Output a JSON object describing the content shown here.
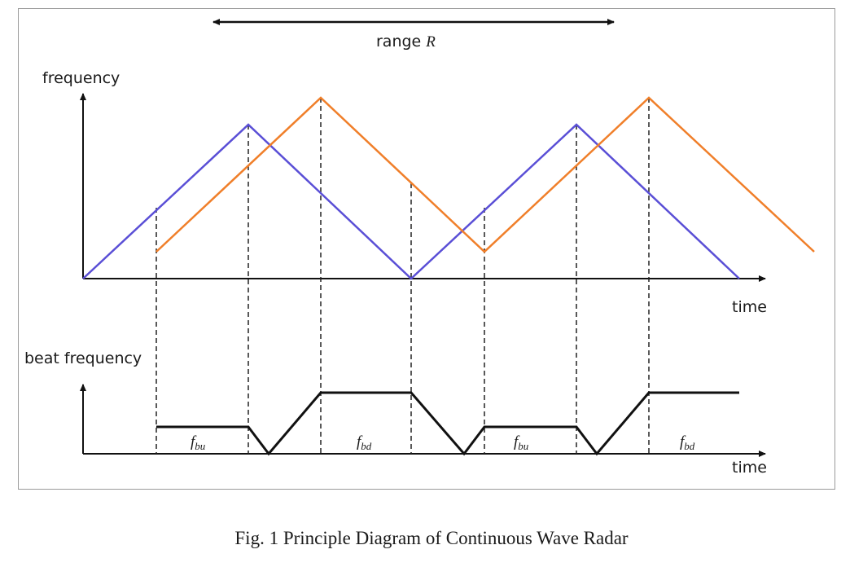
{
  "diagram": {
    "range_label": "range",
    "range_symbol": "R",
    "top_axis_label": "frequency",
    "top_time_label": "time",
    "bottom_axis_label": "beat frequency",
    "bottom_time_label": "time",
    "beat_labels": [
      {
        "main": "f",
        "sub": "bu"
      },
      {
        "main": "f",
        "sub": "bd"
      },
      {
        "main": "f",
        "sub": "bu"
      },
      {
        "main": "f",
        "sub": "bd"
      }
    ],
    "colors": {
      "transmitted": "#5a4fd6",
      "received": "#f07f2a",
      "beat": "#111111"
    }
  },
  "caption": "Fig. 1 Principle Diagram of Continuous Wave Radar"
}
